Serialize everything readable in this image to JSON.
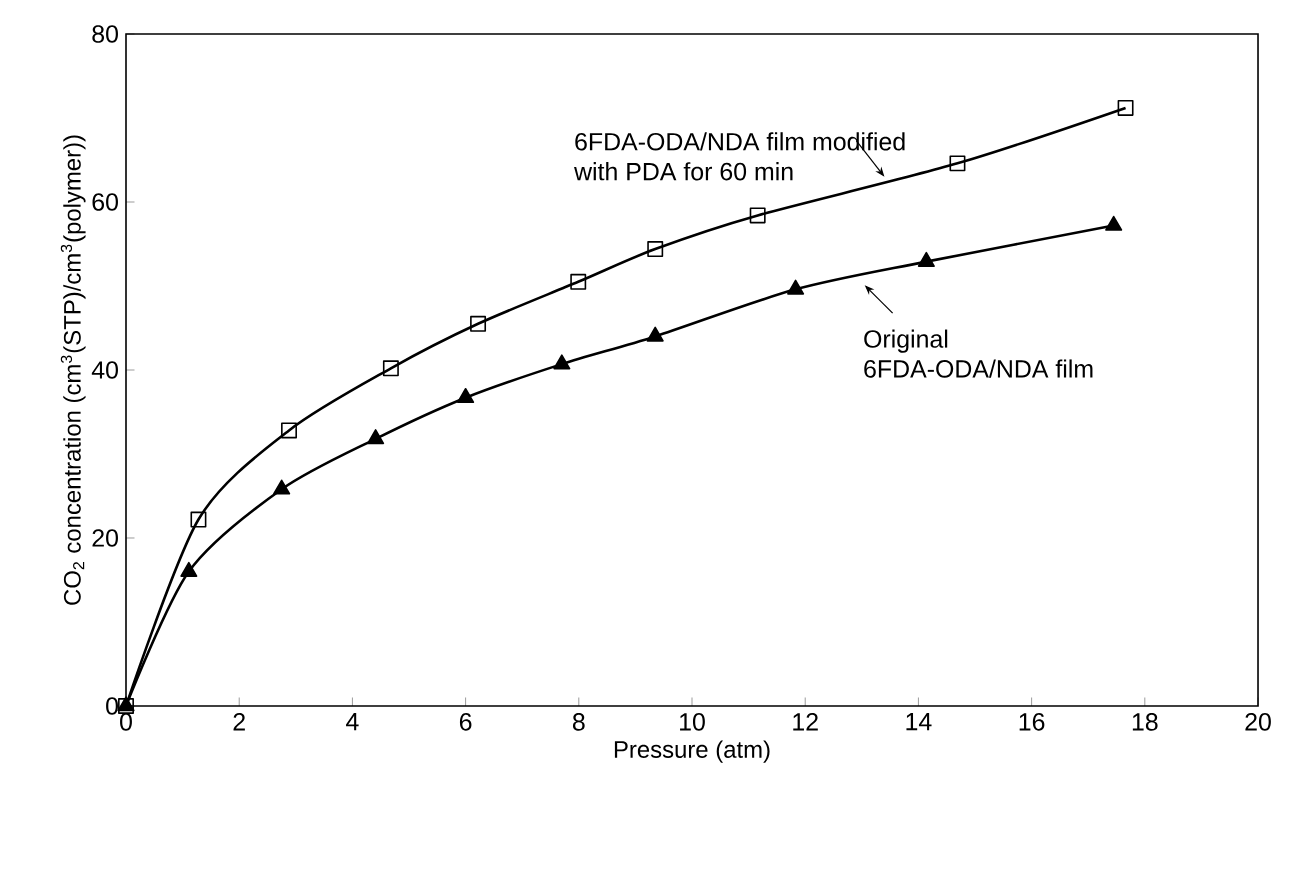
{
  "chart_data": {
    "type": "line",
    "xlabel": "Pressure (atm)",
    "ylabel": "CO$_{2}$ concentration (cm$^{3}$(STP)/cm$^{3}$(polymer))",
    "xlim": [
      0,
      20
    ],
    "ylim": [
      0,
      80
    ],
    "xticks": [
      0,
      2,
      4,
      6,
      8,
      10,
      12,
      14,
      16,
      18,
      20
    ],
    "yticks": [
      0,
      20,
      40,
      60,
      80
    ],
    "grid": false,
    "series": [
      {
        "color": "#000000",
        "marker": "square",
        "x": [
          0,
          1.28,
          2.88,
          4.68,
          6.22,
          7.99,
          9.35,
          11.16,
          14.69,
          17.66
        ],
        "values": [
          0,
          22.2,
          32.8,
          40.2,
          45.5,
          50.5,
          54.4,
          58.4,
          64.6,
          71.2
        ]
      },
      {
        "color": "#000000",
        "marker": "triangle",
        "x": [
          0,
          1.11,
          2.75,
          4.41,
          6.0,
          7.7,
          9.35,
          11.83,
          14.14,
          17.45
        ],
        "values": [
          0,
          16.0,
          25.8,
          31.8,
          36.7,
          40.7,
          44.0,
          49.6,
          52.9,
          57.2
        ]
      }
    ],
    "annotations": [
      {
        "text": "6FDA-ODA/NDA film modified with PDA for 60 min",
        "x": 13.4,
        "y": 63
      },
      {
        "text": "Original 6FDA-ODA/NDA film",
        "x": 13.05,
        "y": 50.1
      }
    ]
  }
}
